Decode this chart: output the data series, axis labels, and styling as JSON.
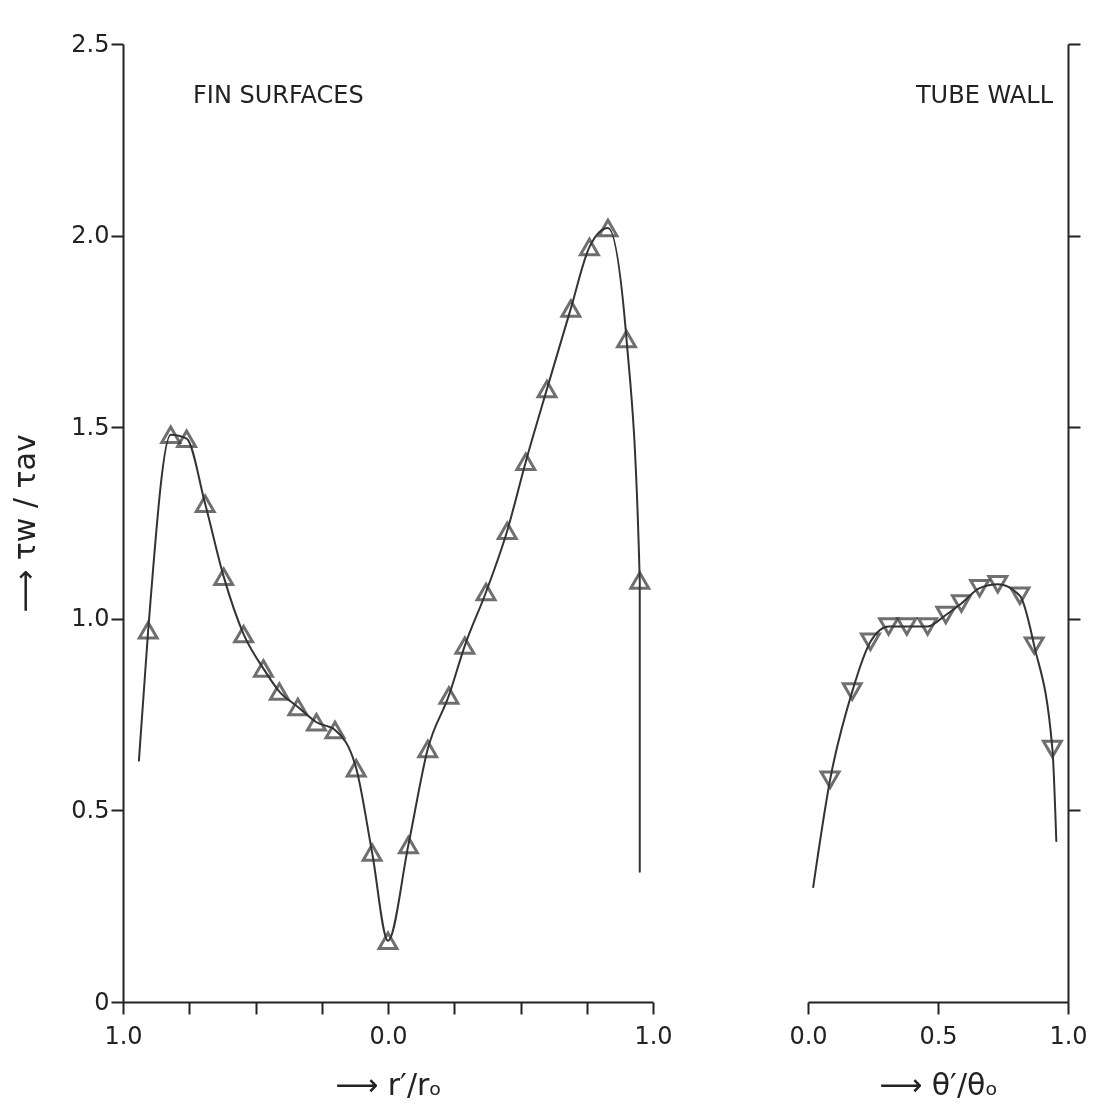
{
  "chart_data": [
    {
      "type": "line",
      "xlabel": "⟶ r′/rₒ",
      "ylabel": "⟶ τw / τav",
      "annotations": [
        "FIN SURFACES"
      ],
      "xlim": [
        -1,
        1
      ],
      "ylim": [
        0,
        2.5
      ],
      "xticks": [
        {
          "value": -1,
          "label": "1.0"
        },
        {
          "value": -0.75,
          "label": null
        },
        {
          "value": -0.5,
          "label": null
        },
        {
          "value": -0.25,
          "label": null
        },
        {
          "value": 0,
          "label": "0.0"
        },
        {
          "value": 0.25,
          "label": null
        },
        {
          "value": 0.5,
          "label": null
        },
        {
          "value": 0.75,
          "label": null
        },
        {
          "value": 1,
          "label": "1.0"
        }
      ],
      "yticks": [
        {
          "value": 0,
          "label": "0"
        },
        0.5,
        {
          "value": 1,
          "label": "1.0"
        },
        1.5,
        {
          "value": 2,
          "label": "2.0"
        },
        2.5
      ],
      "grid": false,
      "line_style": "solid",
      "series": [
        {
          "type": "line",
          "color": "#333333",
          "marker": "none",
          "x": [
            -0.94,
            -0.905,
            -0.82,
            -0.76,
            -0.69,
            -0.62,
            -0.545,
            -0.47,
            -0.41,
            -0.34,
            -0.27,
            -0.2,
            -0.12,
            -0.06,
            0,
            0.077,
            0.15,
            0.23,
            0.29,
            0.37,
            0.45,
            0.52,
            0.6,
            0.69,
            0.76,
            0.83,
            0.9,
            0.95,
            0.95
          ],
          "values": [
            0.63,
            0.97,
            1.48,
            1.47,
            1.3,
            1.11,
            0.96,
            0.87,
            0.81,
            0.77,
            0.73,
            0.71,
            0.61,
            0.39,
            0.16,
            0.41,
            0.66,
            0.8,
            0.93,
            1.07,
            1.23,
            1.41,
            1.6,
            1.81,
            1.97,
            2.02,
            1.73,
            1.1,
            0.34
          ]
        },
        {
          "type": "scatter",
          "color": "#333333",
          "marker": "triangle",
          "x": [
            -0.905,
            -0.82,
            -0.76,
            -0.69,
            -0.62,
            -0.545,
            -0.47,
            -0.41,
            -0.34,
            -0.27,
            -0.2,
            -0.12,
            -0.06,
            0,
            0.077,
            0.15,
            0.23,
            0.29,
            0.37,
            0.45,
            0.52,
            0.6,
            0.69,
            0.76,
            0.83,
            0.9,
            0.95
          ],
          "values": [
            0.97,
            1.48,
            1.47,
            1.3,
            1.11,
            0.96,
            0.87,
            0.81,
            0.77,
            0.73,
            0.71,
            0.61,
            0.39,
            0.16,
            0.41,
            0.66,
            0.8,
            0.93,
            1.07,
            1.23,
            1.41,
            1.6,
            1.81,
            1.97,
            2.02,
            1.73,
            1.1
          ]
        }
      ]
    },
    {
      "type": "line",
      "xlabel": "⟶ θ′/θₒ",
      "annotations": [
        "TUBE WALL"
      ],
      "xlim": [
        0,
        1
      ],
      "ylim": [
        0,
        2.5
      ],
      "xticks": [
        {
          "value": 0,
          "label": "0.0"
        },
        0.5,
        {
          "value": 1,
          "label": "1.0"
        }
      ],
      "yticks": [
        {
          "value": 0.5,
          "label": null
        },
        {
          "value": 1,
          "label": null
        },
        {
          "value": 1.5,
          "label": null
        },
        {
          "value": 2,
          "label": null
        },
        {
          "value": 2.5,
          "label": null
        }
      ],
      "tick_labels": "x",
      "grid": false,
      "line_style": "solid",
      "series": [
        {
          "type": "line",
          "color": "#333333",
          "marker": "none",
          "x": [
            0.02,
            0.085,
            0.17,
            0.24,
            0.31,
            0.38,
            0.46,
            0.53,
            0.59,
            0.66,
            0.73,
            0.815,
            0.87,
            0.94,
            0.955
          ],
          "values": [
            0.3,
            0.58,
            0.81,
            0.94,
            0.98,
            0.98,
            0.98,
            1.01,
            1.04,
            1.08,
            1.09,
            1.06,
            0.93,
            0.66,
            0.42
          ]
        },
        {
          "type": "scatter",
          "color": "#333333",
          "marker": "triangle-down",
          "x": [
            0.085,
            0.17,
            0.24,
            0.31,
            0.38,
            0.46,
            0.53,
            0.59,
            0.66,
            0.73,
            0.815,
            0.87,
            0.94
          ],
          "values": [
            0.58,
            0.81,
            0.94,
            0.98,
            0.98,
            0.98,
            1.01,
            1.04,
            1.08,
            1.09,
            1.06,
            0.93,
            0.66
          ]
        }
      ]
    }
  ]
}
